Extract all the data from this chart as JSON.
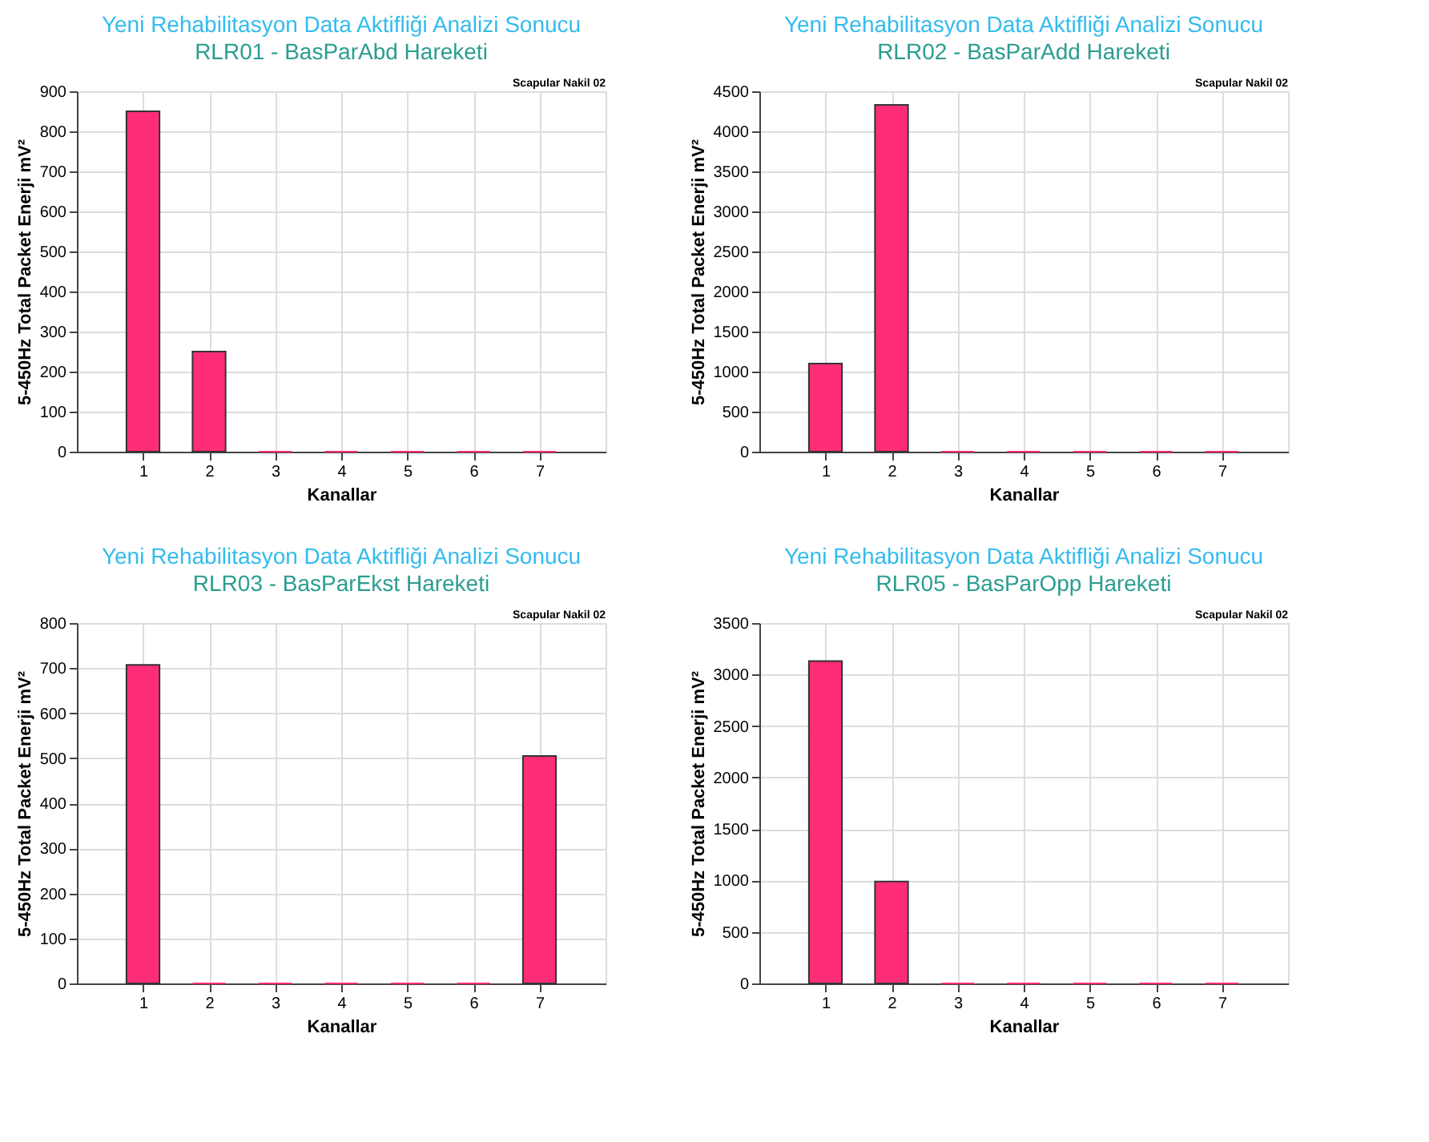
{
  "chart_data": [
    {
      "type": "bar",
      "title": "Yeni Rehabilitasyon Data Aktifliği Analizi Sonucu",
      "subtitle": "RLR01 - BasParAbd Hareketi",
      "xlabel": "Kanallar",
      "ylabel": "5-450Hz Total Packet Enerji mV²",
      "annotations": [
        "Scapular Nakil 02"
      ],
      "x": [
        1,
        2,
        3,
        4,
        5,
        6,
        7
      ],
      "values": [
        850,
        250,
        0,
        0,
        0,
        0,
        0
      ],
      "color": "#ff2d78",
      "xlim": [
        0,
        8
      ],
      "xticks": [
        1,
        2,
        3,
        4,
        5,
        6,
        7
      ],
      "ylim": [
        0,
        900
      ],
      "yticks": [
        0,
        100,
        200,
        300,
        400,
        500,
        600,
        700,
        800,
        900
      ],
      "grid": true
    },
    {
      "type": "bar",
      "title": "Yeni Rehabilitasyon Data Aktifliği Analizi Sonucu",
      "subtitle": "RLR02 - BasParAdd Hareketi",
      "xlabel": "Kanallar",
      "ylabel": "5-450Hz Total Packet Enerji mV²",
      "annotations": [
        "Scapular Nakil 02"
      ],
      "x": [
        1,
        2,
        3,
        4,
        5,
        6,
        7
      ],
      "values": [
        1100,
        4330,
        0,
        0,
        0,
        0,
        0
      ],
      "color": "#ff2d78",
      "xlim": [
        0,
        8
      ],
      "xticks": [
        1,
        2,
        3,
        4,
        5,
        6,
        7
      ],
      "ylim": [
        0,
        4500
      ],
      "yticks": [
        0,
        500,
        1000,
        1500,
        2000,
        2500,
        3000,
        3500,
        4000,
        4500
      ],
      "grid": true
    },
    {
      "type": "bar",
      "title": "Yeni Rehabilitasyon Data Aktifliği Analizi Sonucu",
      "subtitle": "RLR03 - BasParEkst Hareketi",
      "xlabel": "Kanallar",
      "ylabel": "5-450Hz Total Packet Enerji mV²",
      "annotations": [
        "Scapular Nakil 02"
      ],
      "x": [
        1,
        2,
        3,
        4,
        5,
        6,
        7
      ],
      "values": [
        707,
        0,
        0,
        0,
        0,
        0,
        505
      ],
      "color": "#ff2d78",
      "xlim": [
        0,
        8
      ],
      "xticks": [
        1,
        2,
        3,
        4,
        5,
        6,
        7
      ],
      "ylim": [
        0,
        800
      ],
      "yticks": [
        0,
        100,
        200,
        300,
        400,
        500,
        600,
        700,
        800
      ],
      "grid": true
    },
    {
      "type": "bar",
      "title": "Yeni Rehabilitasyon Data Aktifliği Analizi Sonucu",
      "subtitle": "RLR05 - BasParOpp Hareketi",
      "xlabel": "Kanallar",
      "ylabel": "5-450Hz Total Packet Enerji mV²",
      "annotations": [
        "Scapular Nakil 02"
      ],
      "x": [
        1,
        2,
        3,
        4,
        5,
        6,
        7
      ],
      "values": [
        3130,
        990,
        0,
        0,
        0,
        0,
        0
      ],
      "color": "#ff2d78",
      "xlim": [
        0,
        8
      ],
      "xticks": [
        1,
        2,
        3,
        4,
        5,
        6,
        7
      ],
      "ylim": [
        0,
        3500
      ],
      "yticks": [
        0,
        500,
        1000,
        1500,
        2000,
        2500,
        3000,
        3500
      ],
      "grid": true
    }
  ]
}
